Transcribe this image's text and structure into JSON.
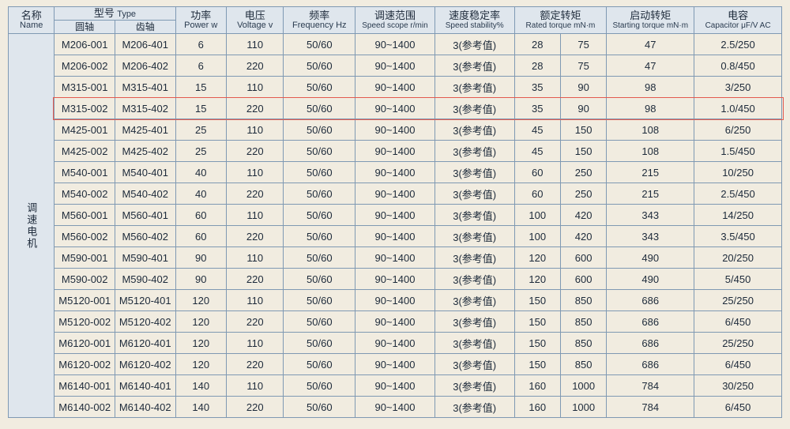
{
  "header": {
    "name": {
      "cn": "名称",
      "en": "Name"
    },
    "type": {
      "cn": "型号",
      "en": "Type"
    },
    "type_sub1": {
      "cn": "圆轴"
    },
    "type_sub2": {
      "cn": "齿轴"
    },
    "power": {
      "cn": "功率",
      "en": "Power w"
    },
    "voltage": {
      "cn": "电压",
      "en": "Voltage v"
    },
    "frequency": {
      "cn": "频率",
      "en": "Frequency Hz"
    },
    "speed_scope": {
      "cn": "调速范围",
      "en": "Speed scope r/min"
    },
    "speed_stab": {
      "cn": "速度稳定率",
      "en": "Speed stability%"
    },
    "rated_tq": {
      "cn": "额定转矩",
      "en": "Rated torque mN·m"
    },
    "start_tq": {
      "cn": "启动转矩",
      "en": "Starting torque mN·m"
    },
    "capacitor": {
      "cn": "电容",
      "en": "Capacitor  μF/V AC"
    }
  },
  "row_group_label": "调速电机",
  "highlighted_row_index": 3,
  "colors": {
    "border": "#7f99b3",
    "head_bg": "#dfe6ed",
    "page_bg": "#f1ece0",
    "text": "#1d2a3a",
    "highlight_border": "#e35a4f"
  },
  "columns": [
    "model_round",
    "model_gear",
    "power",
    "voltage",
    "frequency",
    "speed_scope",
    "speed_stab",
    "rated_tq_a",
    "rated_tq_b",
    "start_tq",
    "capacitor"
  ],
  "rows": [
    {
      "model_round": "M206-001",
      "model_gear": "M206-401",
      "power": "6",
      "voltage": "110",
      "frequency": "50/60",
      "speed_scope": "90~1400",
      "speed_stab": "3(参考值)",
      "rated_tq_a": "28",
      "rated_tq_b": "75",
      "start_tq": "47",
      "capacitor": "2.5/250"
    },
    {
      "model_round": "M206-002",
      "model_gear": "M206-402",
      "power": "6",
      "voltage": "220",
      "frequency": "50/60",
      "speed_scope": "90~1400",
      "speed_stab": "3(参考值)",
      "rated_tq_a": "28",
      "rated_tq_b": "75",
      "start_tq": "47",
      "capacitor": "0.8/450"
    },
    {
      "model_round": "M315-001",
      "model_gear": "M315-401",
      "power": "15",
      "voltage": "110",
      "frequency": "50/60",
      "speed_scope": "90~1400",
      "speed_stab": "3(参考值)",
      "rated_tq_a": "35",
      "rated_tq_b": "90",
      "start_tq": "98",
      "capacitor": "3/250"
    },
    {
      "model_round": "M315-002",
      "model_gear": "M315-402",
      "power": "15",
      "voltage": "220",
      "frequency": "50/60",
      "speed_scope": "90~1400",
      "speed_stab": "3(参考值)",
      "rated_tq_a": "35",
      "rated_tq_b": "90",
      "start_tq": "98",
      "capacitor": "1.0/450"
    },
    {
      "model_round": "M425-001",
      "model_gear": "M425-401",
      "power": "25",
      "voltage": "110",
      "frequency": "50/60",
      "speed_scope": "90~1400",
      "speed_stab": "3(参考值)",
      "rated_tq_a": "45",
      "rated_tq_b": "150",
      "start_tq": "108",
      "capacitor": "6/250"
    },
    {
      "model_round": "M425-002",
      "model_gear": "M425-402",
      "power": "25",
      "voltage": "220",
      "frequency": "50/60",
      "speed_scope": "90~1400",
      "speed_stab": "3(参考值)",
      "rated_tq_a": "45",
      "rated_tq_b": "150",
      "start_tq": "108",
      "capacitor": "1.5/450"
    },
    {
      "model_round": "M540-001",
      "model_gear": "M540-401",
      "power": "40",
      "voltage": "110",
      "frequency": "50/60",
      "speed_scope": "90~1400",
      "speed_stab": "3(参考值)",
      "rated_tq_a": "60",
      "rated_tq_b": "250",
      "start_tq": "215",
      "capacitor": "10/250"
    },
    {
      "model_round": "M540-002",
      "model_gear": "M540-402",
      "power": "40",
      "voltage": "220",
      "frequency": "50/60",
      "speed_scope": "90~1400",
      "speed_stab": "3(参考值)",
      "rated_tq_a": "60",
      "rated_tq_b": "250",
      "start_tq": "215",
      "capacitor": "2.5/450"
    },
    {
      "model_round": "M560-001",
      "model_gear": "M560-401",
      "power": "60",
      "voltage": "110",
      "frequency": "50/60",
      "speed_scope": "90~1400",
      "speed_stab": "3(参考值)",
      "rated_tq_a": "100",
      "rated_tq_b": "420",
      "start_tq": "343",
      "capacitor": "14/250"
    },
    {
      "model_round": "M560-002",
      "model_gear": "M560-402",
      "power": "60",
      "voltage": "220",
      "frequency": "50/60",
      "speed_scope": "90~1400",
      "speed_stab": "3(参考值)",
      "rated_tq_a": "100",
      "rated_tq_b": "420",
      "start_tq": "343",
      "capacitor": "3.5/450"
    },
    {
      "model_round": "M590-001",
      "model_gear": "M590-401",
      "power": "90",
      "voltage": "110",
      "frequency": "50/60",
      "speed_scope": "90~1400",
      "speed_stab": "3(参考值)",
      "rated_tq_a": "120",
      "rated_tq_b": "600",
      "start_tq": "490",
      "capacitor": "20/250"
    },
    {
      "model_round": "M590-002",
      "model_gear": "M590-402",
      "power": "90",
      "voltage": "220",
      "frequency": "50/60",
      "speed_scope": "90~1400",
      "speed_stab": "3(参考值)",
      "rated_tq_a": "120",
      "rated_tq_b": "600",
      "start_tq": "490",
      "capacitor": "5/450"
    },
    {
      "model_round": "M5120-001",
      "model_gear": "M5120-401",
      "power": "120",
      "voltage": "110",
      "frequency": "50/60",
      "speed_scope": "90~1400",
      "speed_stab": "3(参考值)",
      "rated_tq_a": "150",
      "rated_tq_b": "850",
      "start_tq": "686",
      "capacitor": "25/250"
    },
    {
      "model_round": "M5120-002",
      "model_gear": "M5120-402",
      "power": "120",
      "voltage": "220",
      "frequency": "50/60",
      "speed_scope": "90~1400",
      "speed_stab": "3(参考值)",
      "rated_tq_a": "150",
      "rated_tq_b": "850",
      "start_tq": "686",
      "capacitor": "6/450"
    },
    {
      "model_round": "M6120-001",
      "model_gear": "M6120-401",
      "power": "120",
      "voltage": "110",
      "frequency": "50/60",
      "speed_scope": "90~1400",
      "speed_stab": "3(参考值)",
      "rated_tq_a": "150",
      "rated_tq_b": "850",
      "start_tq": "686",
      "capacitor": "25/250"
    },
    {
      "model_round": "M6120-002",
      "model_gear": "M6120-402",
      "power": "120",
      "voltage": "220",
      "frequency": "50/60",
      "speed_scope": "90~1400",
      "speed_stab": "3(参考值)",
      "rated_tq_a": "150",
      "rated_tq_b": "850",
      "start_tq": "686",
      "capacitor": "6/450"
    },
    {
      "model_round": "M6140-001",
      "model_gear": "M6140-401",
      "power": "140",
      "voltage": "110",
      "frequency": "50/60",
      "speed_scope": "90~1400",
      "speed_stab": "3(参考值)",
      "rated_tq_a": "160",
      "rated_tq_b": "1000",
      "start_tq": "784",
      "capacitor": "30/250"
    },
    {
      "model_round": "M6140-002",
      "model_gear": "M6140-402",
      "power": "140",
      "voltage": "220",
      "frequency": "50/60",
      "speed_scope": "90~1400",
      "speed_stab": "3(参考值)",
      "rated_tq_a": "160",
      "rated_tq_b": "1000",
      "start_tq": "784",
      "capacitor": "6/450"
    }
  ]
}
